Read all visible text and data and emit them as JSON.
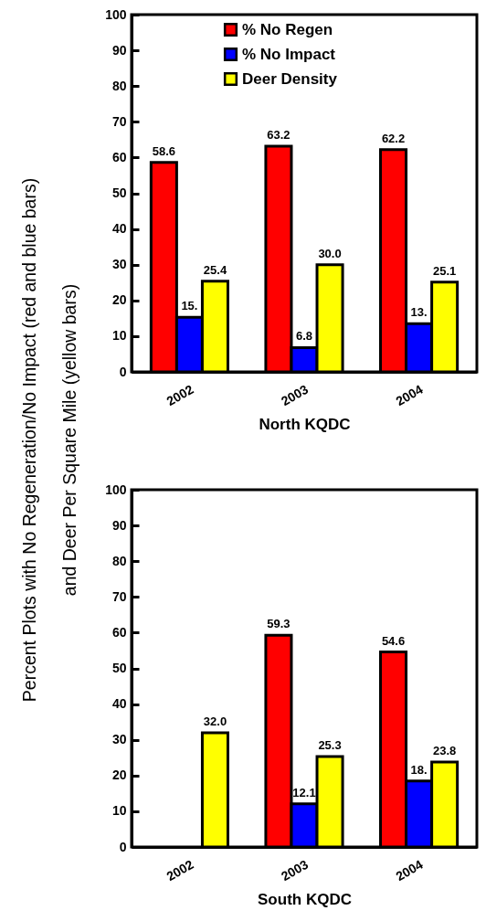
{
  "chart_data": [
    {
      "type": "bar",
      "ylabel": "Percent Plots with No Regeneration/No Impact (red and blue bars)\nand Deer Per Square Mile (yellow bars)",
      "xlabel": "North KQDC",
      "categories": [
        "2002",
        "2003",
        "2004"
      ],
      "ylim": [
        0,
        100
      ],
      "yticks": [
        0,
        10,
        20,
        30,
        40,
        50,
        60,
        70,
        80,
        90,
        100
      ],
      "legend": "top",
      "grid": false,
      "series": [
        {
          "name": "% No Regen",
          "color": "#ff0000",
          "values": [
            58.6,
            63.2,
            62.2
          ],
          "value_labels": [
            "58.6",
            "63.2",
            "62.2"
          ]
        },
        {
          "name": "% No Impact",
          "color": "#0000ff",
          "values": [
            15.3,
            6.8,
            13.5
          ],
          "value_labels": [
            "15.",
            "6.8",
            "13."
          ]
        },
        {
          "name": "Deer Density",
          "color": "#ffff00",
          "values": [
            25.4,
            30.0,
            25.1
          ],
          "value_labels": [
            "25.4",
            "30.0",
            "25.1"
          ]
        }
      ]
    },
    {
      "type": "bar",
      "xlabel": "South KQDC",
      "categories": [
        "2002",
        "2003",
        "2004"
      ],
      "ylim": [
        0,
        100
      ],
      "yticks": [
        0,
        10,
        20,
        30,
        40,
        50,
        60,
        70,
        80,
        90,
        100
      ],
      "legend": "top",
      "grid": false,
      "series": [
        {
          "name": "% No Regen",
          "color": "#ff0000",
          "values": [
            null,
            59.3,
            54.6
          ],
          "value_labels": [
            null,
            "59.3",
            "54.6"
          ]
        },
        {
          "name": "% No Impact",
          "color": "#0000ff",
          "values": [
            null,
            12.1,
            18.5
          ],
          "value_labels": [
            null,
            "12.1",
            "18."
          ]
        },
        {
          "name": "Deer Density",
          "color": "#ffff00",
          "values": [
            32.0,
            25.3,
            23.8
          ],
          "value_labels": [
            "32.0",
            "25.3",
            "23.8"
          ]
        }
      ]
    }
  ]
}
